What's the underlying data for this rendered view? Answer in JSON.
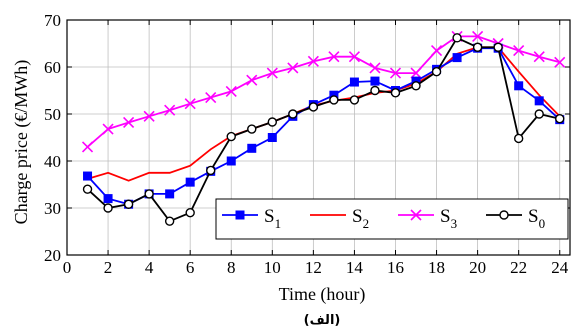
{
  "chart_data": {
    "type": "line",
    "xlabel": "Time (hour)",
    "ylabel": "Charge price (€/MWh)",
    "caption": "(الف)",
    "xlim": [
      0,
      24.5
    ],
    "ylim": [
      20,
      70
    ],
    "xticks": [
      0,
      2,
      4,
      6,
      8,
      10,
      12,
      14,
      16,
      18,
      20,
      22,
      24
    ],
    "yticks": [
      20,
      30,
      40,
      50,
      60,
      70
    ],
    "grid": true,
    "legend_position": "bottom-right",
    "x": [
      1,
      2,
      3,
      4,
      5,
      6,
      7,
      8,
      9,
      10,
      11,
      12,
      13,
      14,
      15,
      16,
      17,
      18,
      19,
      20,
      21,
      22,
      23,
      24
    ],
    "series": [
      {
        "name": "S1",
        "legend_main": "S",
        "legend_sub": "1",
        "color": "#0000ff",
        "marker": "square",
        "values": [
          36.8,
          32,
          30.8,
          33,
          33,
          35.5,
          37.8,
          40,
          42.7,
          45,
          49.5,
          52,
          54,
          56.8,
          57,
          55,
          57,
          59.5,
          62,
          64,
          64,
          56,
          52.8,
          48.8
        ]
      },
      {
        "name": "S2",
        "legend_main": "S",
        "legend_sub": "2",
        "color": "#ff0000",
        "marker": "none",
        "values": [
          36.2,
          37.5,
          35.8,
          37.5,
          37.5,
          39,
          42.5,
          45.3,
          46.8,
          48.3,
          50,
          51.8,
          52.8,
          53.5,
          54.5,
          55,
          56.5,
          59,
          62.8,
          64.2,
          64.2,
          59,
          54,
          49.5
        ]
      },
      {
        "name": "S3",
        "legend_main": "S",
        "legend_sub": "3",
        "color": "#ff00ff",
        "marker": "x",
        "values": [
          43,
          46.8,
          48.2,
          49.5,
          50.8,
          52.2,
          53.5,
          54.8,
          57.2,
          58.7,
          59.8,
          61.2,
          62.2,
          62.2,
          59.8,
          58.7,
          58.7,
          63.5,
          66.5,
          66.5,
          65,
          63.5,
          62.2,
          61
        ]
      },
      {
        "name": "S0",
        "legend_main": "S",
        "legend_sub": "0",
        "color": "#000000",
        "marker": "circle",
        "values": [
          34,
          30,
          30.8,
          33,
          27.2,
          29,
          38,
          45.2,
          46.8,
          48.3,
          50,
          51.5,
          53,
          53,
          55,
          54.5,
          56,
          59,
          66.2,
          64.2,
          64.2,
          44.8,
          50,
          49
        ]
      }
    ]
  }
}
